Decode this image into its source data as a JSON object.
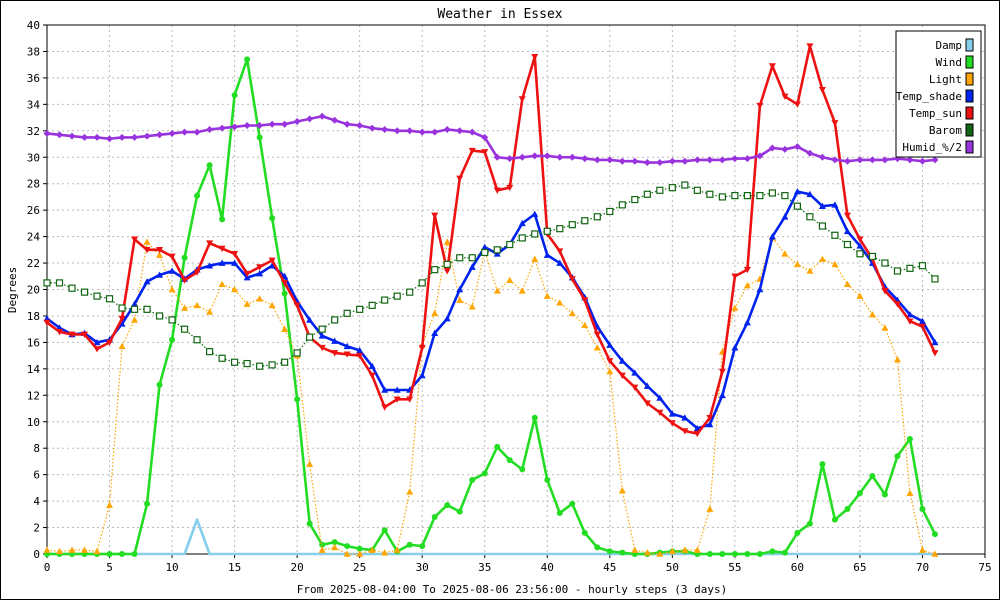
{
  "chart_data": {
    "type": "line",
    "title": "Weather in Essex",
    "xlabel": "From 2025-08-04:00 To 2025-08-06 23:56:00 - hourly steps (3 days)",
    "ylabel": "Degrees",
    "xlim": [
      0,
      75
    ],
    "ylim": [
      0,
      40
    ],
    "xticks": [
      0,
      5,
      10,
      15,
      20,
      25,
      30,
      35,
      40,
      45,
      50,
      55,
      60,
      65,
      70,
      75
    ],
    "yticks": [
      0,
      2,
      4,
      6,
      8,
      10,
      12,
      14,
      16,
      18,
      20,
      22,
      24,
      26,
      28,
      30,
      32,
      34,
      36,
      38,
      40
    ],
    "grid": true,
    "legend_position": "top-right",
    "x": [
      0,
      1,
      2,
      3,
      4,
      5,
      6,
      7,
      8,
      9,
      10,
      11,
      12,
      13,
      14,
      15,
      16,
      17,
      18,
      19,
      20,
      21,
      22,
      23,
      24,
      25,
      26,
      27,
      28,
      29,
      30,
      31,
      32,
      33,
      34,
      35,
      36,
      37,
      38,
      39,
      40,
      41,
      42,
      43,
      44,
      45,
      46,
      47,
      48,
      49,
      50,
      51,
      52,
      53,
      54,
      55,
      56,
      57,
      58,
      59,
      60,
      61,
      62,
      63,
      64,
      65,
      66,
      67,
      68,
      69,
      70,
      71
    ],
    "series": [
      {
        "name": "Damp",
        "color": "#87ceeb",
        "marker": "none",
        "dash": "solid",
        "values": [
          0,
          0,
          0,
          0,
          0,
          0,
          0,
          0,
          0,
          0,
          0,
          0,
          2.6,
          0,
          0,
          0,
          0,
          0,
          0,
          0,
          0,
          0,
          0,
          0,
          0,
          0,
          0,
          0,
          0,
          0,
          0,
          0,
          0,
          0,
          0,
          0,
          0,
          0,
          0,
          0,
          0,
          0,
          0,
          0,
          0,
          0,
          0,
          0,
          0,
          0,
          0,
          0,
          0,
          0,
          0,
          0,
          0,
          0,
          0,
          0,
          0,
          0,
          0,
          0,
          0,
          0,
          0,
          0,
          0,
          0,
          0,
          0
        ]
      },
      {
        "name": "Wind",
        "color": "#22dd22",
        "marker": "circle",
        "dash": "solid",
        "values": [
          0,
          0,
          0,
          0,
          0,
          0,
          0,
          0,
          3.8,
          12.8,
          16.2,
          22.4,
          27.1,
          29.4,
          25.3,
          34.7,
          37.4,
          31.5,
          25.4,
          19.7,
          11.7,
          2.3,
          0.7,
          0.9,
          0.6,
          0.4,
          0.3,
          1.8,
          0.2,
          0.7,
          0.6,
          2.8,
          3.7,
          3.2,
          5.6,
          6.1,
          8.1,
          7.1,
          6.4,
          10.3,
          5.6,
          3.1,
          3.8,
          1.6,
          0.5,
          0.2,
          0.1,
          0,
          0,
          0.1,
          0.2,
          0.2,
          0,
          0,
          0,
          0,
          0,
          0,
          0.2,
          0.1,
          1.6,
          2.3,
          6.8,
          2.6,
          3.4,
          4.6,
          5.9,
          4.5,
          7.4,
          8.7,
          3.4,
          1.5
        ]
      },
      {
        "name": "Light",
        "color": "#ffa500",
        "marker": "triangle-up",
        "dash": "dotted",
        "values": [
          0.3,
          0.2,
          0.3,
          0.3,
          0.2,
          3.7,
          15.7,
          17.7,
          23.6,
          22.6,
          20.0,
          18.6,
          18.8,
          18.3,
          20.4,
          20.0,
          18.9,
          19.3,
          18.8,
          17.0,
          15.0,
          6.8,
          0.3,
          0.5,
          0,
          0,
          0.3,
          0.1,
          0.3,
          4.7,
          15.8,
          18.2,
          23.6,
          19.2,
          18.7,
          22.9,
          19.9,
          20.7,
          19.9,
          22.3,
          19.5,
          19.0,
          18.2,
          17.3,
          15.6,
          13.8,
          4.8,
          0.3,
          0.1,
          0,
          0.2,
          0.3,
          0.3,
          3.4,
          15.3,
          18.6,
          20.3,
          20.8,
          23.9,
          22.7,
          21.9,
          21.4,
          22.3,
          21.9,
          20.4,
          19.5,
          18.1,
          17.1,
          14.7,
          4.6,
          0.3,
          0
        ]
      },
      {
        "name": "Temp_shade",
        "color": "#0022ee",
        "marker": "triangle-up",
        "dash": "solid",
        "values": [
          17.8,
          17.1,
          16.6,
          16.7,
          16.0,
          16.2,
          17.4,
          18.9,
          20.6,
          21.1,
          21.4,
          20.8,
          21.5,
          21.8,
          22.0,
          22.0,
          20.9,
          21.2,
          21.8,
          21.0,
          19.1,
          17.7,
          16.5,
          16.1,
          15.7,
          15.4,
          14.2,
          12.4,
          12.4,
          12.4,
          13.5,
          16.7,
          17.8,
          20.0,
          21.7,
          23.2,
          22.7,
          23.4,
          25.0,
          25.7,
          22.6,
          22.0,
          20.9,
          19.4,
          17.2,
          15.8,
          14.6,
          13.7,
          12.7,
          11.8,
          10.6,
          10.3,
          9.5,
          9.8,
          12.0,
          15.6,
          17.5,
          20.0,
          24.0,
          25.5,
          27.4,
          27.2,
          26.3,
          26.4,
          24.4,
          23.3,
          22.0,
          20.2,
          19.2,
          18.1,
          17.6,
          16.0
        ]
      },
      {
        "name": "Temp_sun",
        "color": "#ee1111",
        "marker": "triangle-down",
        "dash": "solid",
        "values": [
          17.5,
          16.8,
          16.6,
          16.6,
          15.5,
          16.0,
          17.8,
          23.8,
          23.0,
          23.0,
          22.5,
          20.7,
          21.3,
          23.5,
          23.1,
          22.7,
          21.2,
          21.7,
          22.2,
          20.5,
          18.8,
          16.4,
          15.6,
          15.2,
          15.1,
          15.0,
          13.5,
          11.1,
          11.7,
          11.7,
          15.6,
          25.6,
          21.4,
          28.4,
          30.5,
          30.4,
          27.5,
          27.7,
          34.4,
          37.6,
          24.2,
          22.9,
          20.8,
          19.2,
          16.6,
          14.6,
          13.5,
          12.6,
          11.4,
          10.7,
          9.9,
          9.3,
          9.1,
          10.3,
          13.8,
          21.0,
          21.5,
          33.9,
          36.9,
          34.6,
          34.0,
          38.4,
          35.1,
          32.6,
          25.6,
          23.8,
          22.3,
          19.9,
          18.9,
          17.6,
          17.2,
          15.2
        ]
      },
      {
        "name": "Barom",
        "color": "#116611",
        "marker": "square",
        "dash": "dotted",
        "values": [
          20.5,
          20.5,
          20.1,
          19.8,
          19.5,
          19.3,
          18.6,
          18.5,
          18.5,
          18.0,
          17.7,
          17.0,
          16.2,
          15.3,
          14.8,
          14.5,
          14.4,
          14.2,
          14.3,
          14.5,
          15.2,
          16.4,
          17.0,
          17.7,
          18.2,
          18.5,
          18.8,
          19.2,
          19.5,
          19.8,
          20.5,
          21.5,
          21.9,
          22.4,
          22.4,
          22.8,
          23.0,
          23.4,
          23.9,
          24.2,
          24.4,
          24.6,
          24.9,
          25.2,
          25.5,
          25.9,
          26.4,
          26.8,
          27.2,
          27.5,
          27.7,
          27.9,
          27.5,
          27.2,
          27.0,
          27.1,
          27.1,
          27.1,
          27.3,
          27.1,
          26.3,
          25.5,
          24.8,
          24.1,
          23.4,
          22.7,
          22.5,
          22.0,
          21.4,
          21.6,
          21.8,
          20.8
        ]
      },
      {
        "name": "Humid_%/2",
        "color": "#9933dd",
        "marker": "diamond",
        "dash": "solid",
        "values": [
          31.8,
          31.7,
          31.6,
          31.5,
          31.5,
          31.4,
          31.5,
          31.5,
          31.6,
          31.7,
          31.8,
          31.9,
          31.9,
          32.1,
          32.2,
          32.3,
          32.4,
          32.4,
          32.5,
          32.5,
          32.7,
          32.9,
          33.1,
          32.8,
          32.5,
          32.4,
          32.2,
          32.1,
          32.0,
          32.0,
          31.9,
          31.9,
          32.1,
          32.0,
          31.9,
          31.5,
          30.0,
          29.9,
          30.0,
          30.1,
          30.1,
          30.0,
          30.0,
          29.9,
          29.8,
          29.8,
          29.7,
          29.7,
          29.6,
          29.6,
          29.7,
          29.7,
          29.8,
          29.8,
          29.8,
          29.9,
          29.9,
          30.1,
          30.7,
          30.6,
          30.8,
          30.3,
          30.0,
          29.8,
          29.7,
          29.8,
          29.8,
          29.8,
          29.9,
          29.8,
          29.7,
          29.8
        ]
      }
    ]
  }
}
